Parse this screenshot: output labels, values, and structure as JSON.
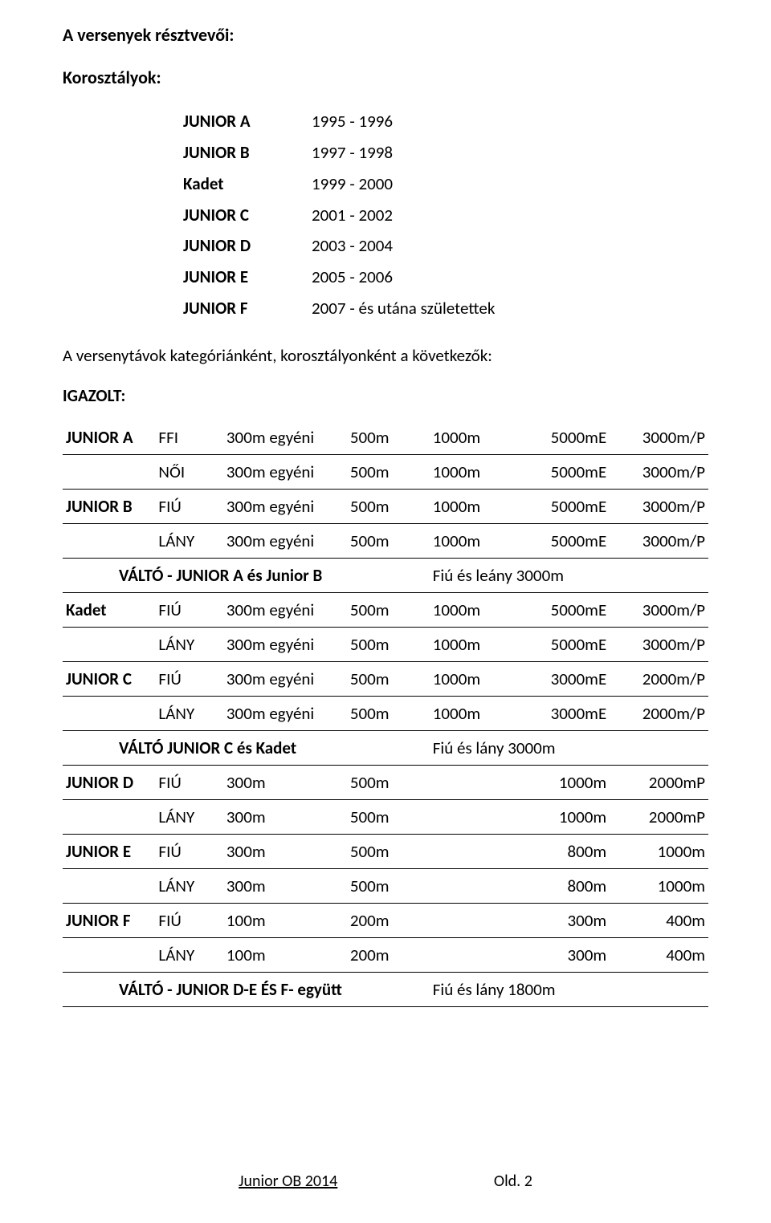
{
  "headings": {
    "participants": "A versenyek résztvevői:",
    "age_groups": "Korosztályok:",
    "distances_intro": "A versenytávok kategóriánként, korosztályonként a következők:",
    "igazolt": "IGAZOLT:"
  },
  "age_groups": [
    {
      "cat": "JUNIOR A",
      "years": "1995 - 1996"
    },
    {
      "cat": "JUNIOR B",
      "years": "1997 - 1998"
    },
    {
      "cat": "Kadet",
      "years": "1999 - 2000"
    },
    {
      "cat": "JUNIOR C",
      "years": "2001 - 2002"
    },
    {
      "cat": "JUNIOR D",
      "years": "2003 - 2004"
    },
    {
      "cat": "JUNIOR E",
      "years": "2005 - 2006"
    },
    {
      "cat": "JUNIOR F",
      "years": "2007 - és utána születettek"
    }
  ],
  "dist_rows": [
    {
      "type": "d",
      "cat": "JUNIOR A",
      "sex": "FFI",
      "d1": "300m egyéni",
      "d2": "500m",
      "d3": "1000m",
      "d4": "5000mE",
      "d5": "3000m/P"
    },
    {
      "type": "d",
      "cat": "",
      "sex": "NŐI",
      "d1": "300m egyéni",
      "d2": "500m",
      "d3": "1000m",
      "d4": "5000mE",
      "d5": "3000m/P"
    },
    {
      "type": "d",
      "cat": "JUNIOR B",
      "sex": "FIÚ",
      "d1": "300m egyéni",
      "d2": "500m",
      "d3": "1000m",
      "d4": "5000mE",
      "d5": "3000m/P"
    },
    {
      "type": "d",
      "cat": "",
      "sex": "LÁNY",
      "d1": "300m egyéni",
      "d2": "500m",
      "d3": "1000m",
      "d4": "5000mE",
      "d5": "3000m/P"
    },
    {
      "type": "r",
      "label": "VÁLTÓ - JUNIOR A és Junior B",
      "note": "Fiú és leány 3000m"
    },
    {
      "type": "d",
      "cat": "Kadet",
      "sex": "FIÚ",
      "d1": "300m egyéni",
      "d2": "500m",
      "d3": "1000m",
      "d4": "5000mE",
      "d5": "3000m/P"
    },
    {
      "type": "d",
      "cat": "",
      "sex": "LÁNY",
      "d1": "300m egyéni",
      "d2": "500m",
      "d3": "1000m",
      "d4": "5000mE",
      "d5": "3000m/P"
    },
    {
      "type": "d",
      "cat": "JUNIOR C",
      "sex": "FIÚ",
      "d1": "300m egyéni",
      "d2": "500m",
      "d3": "1000m",
      "d4": "3000mE",
      "d5": "2000m/P"
    },
    {
      "type": "d",
      "cat": "",
      "sex": "LÁNY",
      "d1": "300m egyéni",
      "d2": "500m",
      "d3": "1000m",
      "d4": "3000mE",
      "d5": "2000m/P"
    },
    {
      "type": "r",
      "label": "VÁLTÓ JUNIOR C és Kadet",
      "note": "Fiú és lány 3000m"
    },
    {
      "type": "d",
      "cat": "JUNIOR D",
      "sex": "FIÚ",
      "d1": "300m",
      "d2": "500m",
      "d3": "",
      "d4": "1000m",
      "d5": "2000mP"
    },
    {
      "type": "d",
      "cat": "",
      "sex": "LÁNY",
      "d1": "300m",
      "d2": "500m",
      "d3": "",
      "d4": "1000m",
      "d5": "2000mP"
    },
    {
      "type": "d",
      "cat": "JUNIOR E",
      "sex": "FIÚ",
      "d1": "300m",
      "d2": "500m",
      "d3": "",
      "d4": "800m",
      "d5": "1000m"
    },
    {
      "type": "d",
      "cat": "",
      "sex": "LÁNY",
      "d1": "300m",
      "d2": "500m",
      "d3": "",
      "d4": "800m",
      "d5": "1000m"
    },
    {
      "type": "d",
      "cat": "JUNIOR F",
      "sex": "FIÚ",
      "d1": "100m",
      "d2": "200m",
      "d3": "",
      "d4": "300m",
      "d5": "400m"
    },
    {
      "type": "d",
      "cat": "",
      "sex": "LÁNY",
      "d1": "100m",
      "d2": "200m",
      "d3": "",
      "d4": "300m",
      "d5": "400m"
    },
    {
      "type": "r",
      "label": "VÁLTÓ - JUNIOR D-E ÉS F- együtt",
      "note": "Fiú és lány 1800m"
    }
  ],
  "footer": {
    "left": "Junior OB 2014",
    "right": "Old. 2"
  },
  "colors": {
    "text": "#000000",
    "background": "#ffffff",
    "rule": "#000000"
  },
  "fonts": {
    "body_size_pt": 16,
    "heading_weight": "bold"
  }
}
